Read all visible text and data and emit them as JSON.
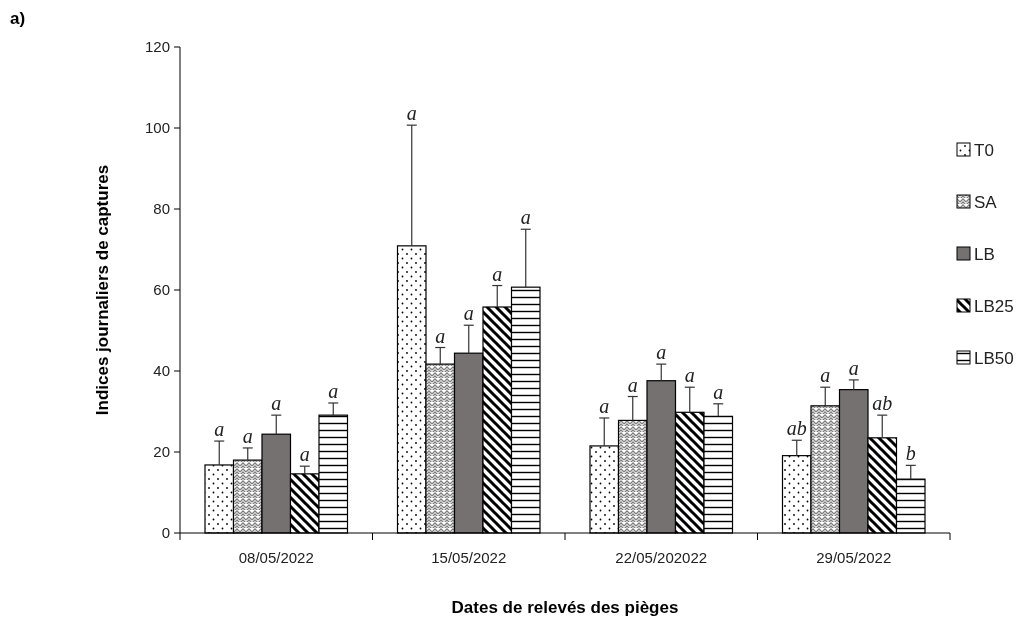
{
  "chart_data": {
    "type": "bar",
    "title": "a)",
    "xlabel": "Dates de relevés des pièges",
    "ylabel": "Indices journaliers  de captures",
    "categories": [
      "08/05/2022",
      "15/05/2022",
      "22/05/202022",
      "29/05/2022"
    ],
    "series": [
      {
        "name": "T0",
        "color": "#000000",
        "values": [
          16.8,
          70.9,
          21.5,
          19.1
        ],
        "errors": [
          [
            16.8,
            22.7
          ],
          [
            70.9,
            100.7
          ],
          [
            21.5,
            28.4
          ],
          [
            19.1,
            22.9
          ]
        ]
      },
      {
        "name": "SA",
        "color": "#000000",
        "values": [
          18.0,
          41.7,
          27.8,
          31.4
        ],
        "errors": [
          [
            18.0,
            21.0
          ],
          [
            41.7,
            45.8
          ],
          [
            27.8,
            33.7
          ],
          [
            31.4,
            36.0
          ]
        ]
      },
      {
        "name": "LB",
        "color": "#767171",
        "values": [
          24.4,
          44.4,
          37.6,
          35.4
        ],
        "errors": [
          [
            24.4,
            29.1
          ],
          [
            44.4,
            51.3
          ],
          [
            37.6,
            41.7
          ],
          [
            35.4,
            37.8
          ]
        ]
      },
      {
        "name": "LB25",
        "color": "#000000",
        "values": [
          14.6,
          55.8,
          29.8,
          23.5
        ],
        "errors": [
          [
            14.6,
            16.5
          ],
          [
            55.8,
            61.1
          ],
          [
            29.8,
            36.0
          ],
          [
            23.5,
            29.1
          ]
        ]
      },
      {
        "name": "LB50",
        "color": "#000000",
        "values": [
          29.1,
          60.7,
          28.8,
          13.3
        ],
        "errors": [
          [
            29.1,
            32.1
          ],
          [
            60.7,
            75.0
          ],
          [
            28.8,
            31.9
          ],
          [
            13.3,
            16.7
          ]
        ]
      }
    ],
    "annotations": [
      "a",
      "a",
      "a",
      "a",
      "a",
      "a",
      "a",
      "a",
      "a",
      "a",
      "a",
      "a",
      "a",
      "a",
      "a",
      "ab",
      "a",
      "a",
      "ab",
      "b"
    ],
    "ylim": [
      0,
      120
    ],
    "yticks": [
      0,
      20,
      40,
      60,
      80,
      100,
      120
    ],
    "grid": false,
    "legend": "right"
  }
}
